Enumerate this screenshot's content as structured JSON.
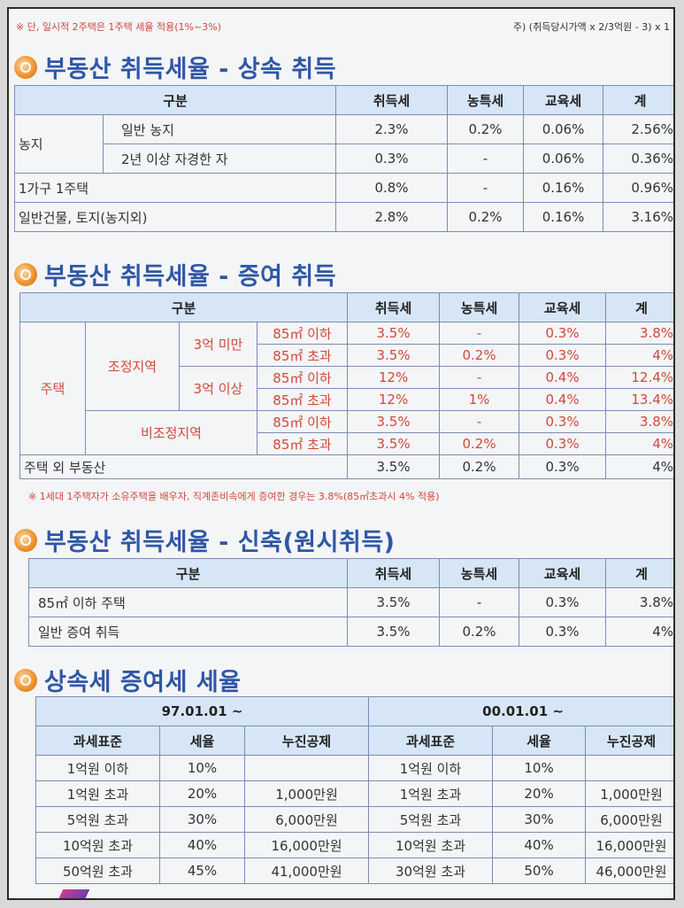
{
  "top_note": "※ 단, 일시적 2주택은 1주택 세율 적용(1%~3%)",
  "top_right": "주) (취득당시가액 x 2/3억원 - 3) x 1",
  "s1": {
    "title": "부동산 취득세율 - 상속 취득",
    "headers": [
      "구분",
      "취득세",
      "농특세",
      "교육세",
      "계"
    ],
    "farmland": "농지",
    "rows": [
      {
        "sub": "일반 농지",
        "acq": "2.3%",
        "farm": "0.2%",
        "edu": "0.06%",
        "total": "2.56%"
      },
      {
        "sub": "2년 이상 자경한 자",
        "acq": "0.3%",
        "farm": "-",
        "edu": "0.06%",
        "total": "0.36%"
      }
    ],
    "row3": {
      "label": "1가구 1주택",
      "acq": "0.8%",
      "farm": "-",
      "edu": "0.16%",
      "total": "0.96%"
    },
    "row4": {
      "label": "일반건물, 토지(농지외)",
      "acq": "2.8%",
      "farm": "0.2%",
      "edu": "0.16%",
      "total": "3.16%"
    }
  },
  "s2": {
    "title": "부동산 취득세율 - 증여 취득",
    "headers": [
      "구분",
      "취득세",
      "농특세",
      "교육세",
      "계"
    ],
    "house": "주택",
    "adjusted": "조정지역",
    "non_adjusted": "비조정지역",
    "under3": "3억 미만",
    "over3": "3억 이상",
    "rows": [
      {
        "size": "85㎡ 이하",
        "acq": "3.5%",
        "farm": "-",
        "edu": "0.3%",
        "total": "3.8%"
      },
      {
        "size": "85㎡ 초과",
        "acq": "3.5%",
        "farm": "0.2%",
        "edu": "0.3%",
        "total": "4%"
      },
      {
        "size": "85㎡ 이하",
        "acq": "12%",
        "farm": "-",
        "edu": "0.4%",
        "total": "12.4%"
      },
      {
        "size": "85㎡ 초과",
        "acq": "12%",
        "farm": "1%",
        "edu": "0.4%",
        "total": "13.4%"
      },
      {
        "size": "85㎡ 이하",
        "acq": "3.5%",
        "farm": "-",
        "edu": "0.3%",
        "total": "3.8%"
      },
      {
        "size": "85㎡ 초과",
        "acq": "3.5%",
        "farm": "0.2%",
        "edu": "0.3%",
        "total": "4%"
      }
    ],
    "other": {
      "label": "주택 외 부동산",
      "acq": "3.5%",
      "farm": "0.2%",
      "edu": "0.3%",
      "total": "4%"
    },
    "note": "※ 1세대 1주택자가 소유주택을 배우자, 직계존비속에게 증여한 경우는 3.8%(85㎡초과시 4% 적용)"
  },
  "s3": {
    "title": "부동산 취득세율 - 신축(원시취득)",
    "headers": [
      "구분",
      "취득세",
      "농특세",
      "교육세",
      "계"
    ],
    "rows": [
      {
        "label": "85㎡ 이하 주택",
        "acq": "3.5%",
        "farm": "-",
        "edu": "0.3%",
        "total": "3.8%"
      },
      {
        "label": "일반 증여 취득",
        "acq": "3.5%",
        "farm": "0.2%",
        "edu": "0.3%",
        "total": "4%"
      }
    ]
  },
  "s4": {
    "title": "상속세 증여세 세율",
    "left_period": "97.01.01 ~",
    "right_period": "00.01.01 ~",
    "headers": [
      "과세표준",
      "세율",
      "누진공제"
    ],
    "left_rows": [
      {
        "base": "1억원 이하",
        "rate": "10%",
        "ded": ""
      },
      {
        "base": "1억원 초과",
        "rate": "20%",
        "ded": "1,000만원"
      },
      {
        "base": "5억원 초과",
        "rate": "30%",
        "ded": "6,000만원"
      },
      {
        "base": "10억원 초과",
        "rate": "40%",
        "ded": "16,000만원"
      },
      {
        "base": "50억원 초과",
        "rate": "45%",
        "ded": "41,000만원"
      }
    ],
    "right_rows": [
      {
        "base": "1억원 이하",
        "rate": "10%",
        "ded": ""
      },
      {
        "base": "1억원 초과",
        "rate": "20%",
        "ded": "1,000만원"
      },
      {
        "base": "5억원 초과",
        "rate": "30%",
        "ded": "6,000만원"
      },
      {
        "base": "10억원 초과",
        "rate": "40%",
        "ded": "16,000만원"
      },
      {
        "base": "30억원 초과",
        "rate": "50%",
        "ded": "46,000만원"
      }
    ]
  }
}
